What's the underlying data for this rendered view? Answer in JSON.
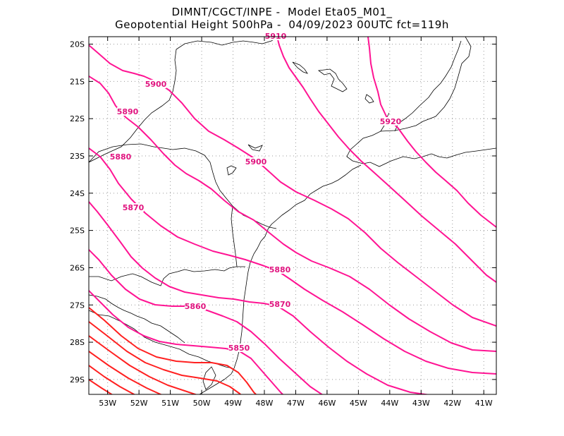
{
  "header": {
    "line1": "DIMNT/CGCT/INPE -  Model Eta05_M01_",
    "line2": "Geopotential Height 500hPa -  04/09/2023 00UTC fct=119h"
  },
  "axes": {
    "lon_ticks": [
      "53W",
      "52W",
      "51W",
      "50W",
      "49W",
      "48W",
      "47W",
      "46W",
      "45W",
      "44W",
      "43W",
      "42W",
      "41W"
    ],
    "lat_ticks": [
      "20S",
      "21S",
      "22S",
      "23S",
      "24S",
      "25S",
      "26S",
      "27S",
      "28S",
      "29S"
    ],
    "lon_range": [
      -53.6,
      -40.6
    ],
    "lat_range": [
      -29.4,
      -19.8
    ],
    "grid": true
  },
  "colors": {
    "contour_magenta": "#ff1493",
    "contour_red": "#ff2020",
    "coast": "#000000"
  },
  "contours": {
    "labels": [
      "5910",
      "5900",
      "5890",
      "5920",
      "5880",
      "5900",
      "5870",
      "5880",
      "5860",
      "5870",
      "5850"
    ]
  }
}
